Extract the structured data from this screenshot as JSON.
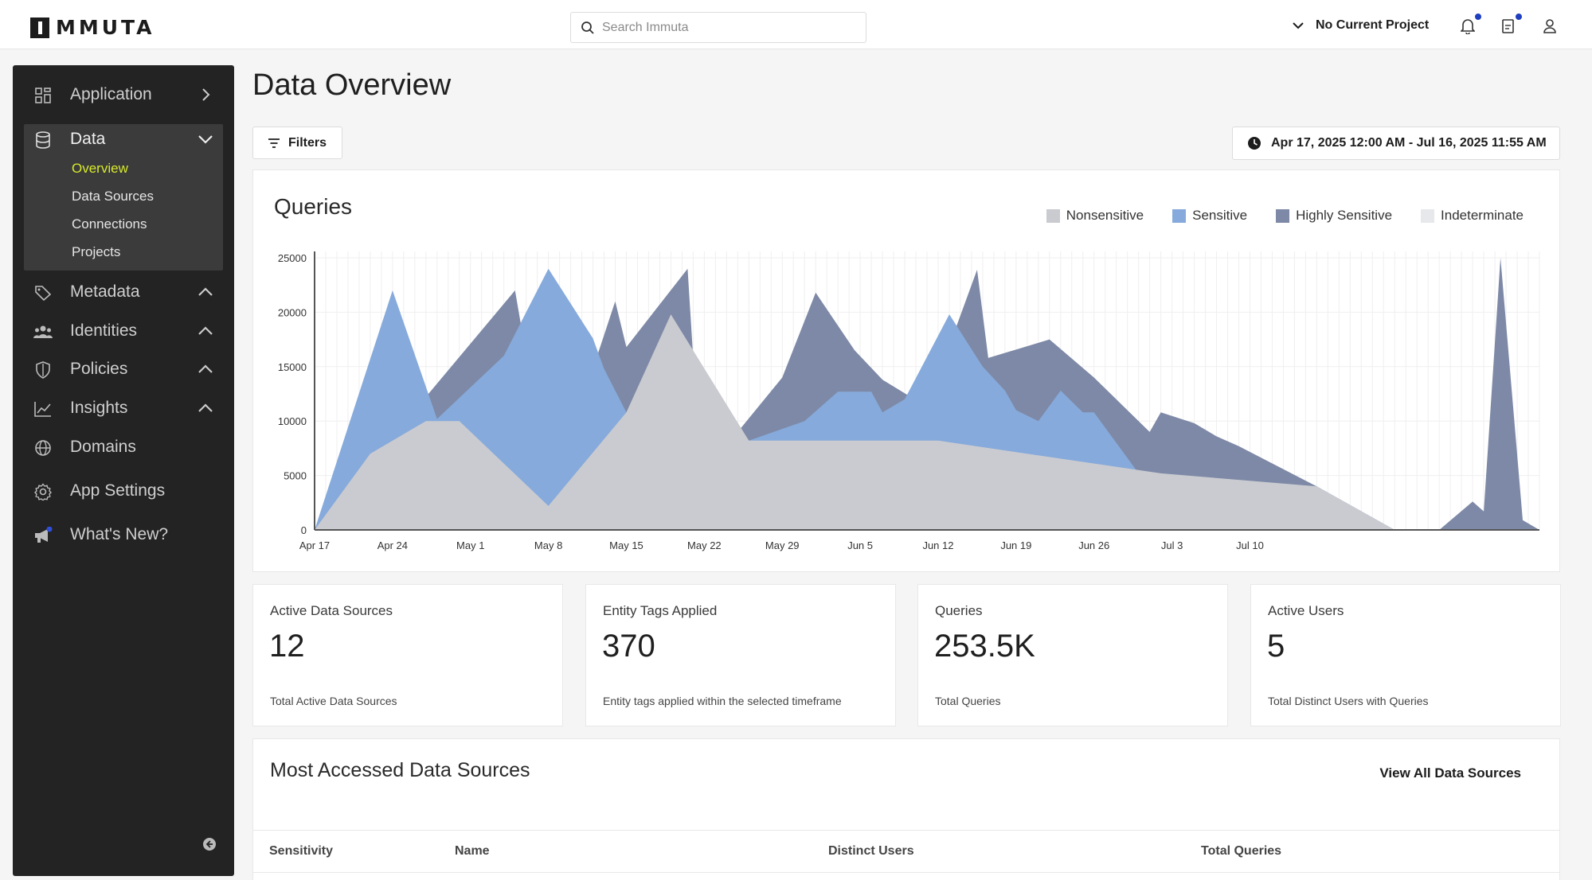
{
  "header": {
    "logo_text": "MMUTA",
    "search_placeholder": "Search Immuta",
    "project_label": "No Current Project",
    "icons": [
      "bell-icon",
      "document-icon",
      "user-icon"
    ]
  },
  "sidebar": {
    "items": [
      {
        "label": "Application",
        "icon": "grid-icon",
        "chevron": "right"
      },
      {
        "label": "Data",
        "icon": "database-icon",
        "chevron": "down"
      },
      {
        "label": "Metadata",
        "icon": "tag-icon",
        "chevron": "up"
      },
      {
        "label": "Identities",
        "icon": "people-icon",
        "chevron": "up"
      },
      {
        "label": "Policies",
        "icon": "shield-icon",
        "chevron": "up"
      },
      {
        "label": "Insights",
        "icon": "line-chart-icon",
        "chevron": "up"
      },
      {
        "label": "Domains",
        "icon": "globe-icon",
        "chevron": ""
      },
      {
        "label": "App Settings",
        "icon": "gear-icon",
        "chevron": ""
      },
      {
        "label": "What's New?",
        "icon": "megaphone-icon",
        "chevron": ""
      }
    ],
    "data_subitems": [
      "Overview",
      "Data Sources",
      "Connections",
      "Projects"
    ],
    "active_subitem": "Overview"
  },
  "page": {
    "title": "Data Overview",
    "filters_label": "Filters",
    "date_range": "Apr 17, 2025 12:00 AM - Jul 16, 2025 11:55 AM"
  },
  "colors": {
    "nonsensitive": "#cacbd0",
    "sensitive": "#86aadb",
    "highly_sensitive": "#7d89a6",
    "indeterminate": "#e7e8ec",
    "accent": "#d8ea2c"
  },
  "chart_data": {
    "type": "area",
    "title": "Queries",
    "ylim": [
      0,
      25000
    ],
    "yticks": [
      "25000",
      "20000",
      "15000",
      "10000",
      "5000",
      "0"
    ],
    "xticks": [
      "Apr 17",
      "Apr 24",
      "May 1",
      "May 8",
      "May 15",
      "May 22",
      "May 29",
      "Jun 5",
      "Jun 12",
      "Jun 19",
      "Jun 26",
      "Jul 3",
      "Jul 10"
    ],
    "x_start": "Apr 17",
    "x_end": "Jul 16",
    "legend": [
      "Nonsensitive",
      "Sensitive",
      "Highly Sensitive",
      "Indeterminate"
    ],
    "legend_position": "top-right",
    "grid": true,
    "series": [
      {
        "name": "Highly Sensitive",
        "points": [
          [
            0,
            0
          ],
          [
            18,
            22000
          ],
          [
            20,
            10200
          ],
          [
            25,
            14800
          ],
          [
            27,
            21000
          ],
          [
            28,
            16800
          ],
          [
            33.5,
            24000
          ],
          [
            34,
            15800
          ],
          [
            38,
            9000
          ],
          [
            42,
            14000
          ],
          [
            45,
            21800
          ],
          [
            48.5,
            16500
          ],
          [
            51,
            13800
          ],
          [
            55,
            11300
          ],
          [
            59.5,
            23900
          ],
          [
            60.5,
            15800
          ],
          [
            66,
            17500
          ],
          [
            70,
            14000
          ],
          [
            75,
            9000
          ],
          [
            76,
            10800
          ],
          [
            79,
            9800
          ],
          [
            81,
            8600
          ],
          [
            83,
            7700
          ],
          [
            90,
            4000
          ],
          [
            97,
            0
          ],
          [
            101,
            0
          ],
          [
            104,
            2600
          ],
          [
            105,
            1700
          ],
          [
            106.5,
            25000
          ],
          [
            108.5,
            900
          ],
          [
            110,
            0
          ]
        ]
      },
      {
        "name": "Sensitive",
        "points": [
          [
            0,
            0
          ],
          [
            7,
            22000
          ],
          [
            11,
            10200
          ],
          [
            17,
            16000
          ],
          [
            21,
            24000
          ],
          [
            25,
            17600
          ],
          [
            26,
            14800
          ],
          [
            28,
            10800
          ],
          [
            35,
            8200
          ],
          [
            39,
            8200
          ],
          [
            44,
            10000
          ],
          [
            47,
            12700
          ],
          [
            50,
            12700
          ],
          [
            51,
            10800
          ],
          [
            53,
            12000
          ],
          [
            57,
            19800
          ],
          [
            60,
            15000
          ],
          [
            62,
            12800
          ],
          [
            63,
            11000
          ],
          [
            65,
            10000
          ],
          [
            67,
            12800
          ],
          [
            69,
            10800
          ],
          [
            70,
            10800
          ],
          [
            74,
            5200
          ],
          [
            90,
            4000
          ],
          [
            97,
            0
          ]
        ]
      },
      {
        "name": "Nonsensitive",
        "points": [
          [
            0,
            0
          ],
          [
            5,
            7000
          ],
          [
            10,
            10000
          ],
          [
            13,
            10000
          ],
          [
            21,
            2200
          ],
          [
            28,
            10800
          ],
          [
            32,
            19800
          ],
          [
            39,
            8200
          ],
          [
            56,
            8200
          ],
          [
            76,
            5200
          ],
          [
            90,
            4000
          ],
          [
            97,
            0
          ]
        ]
      }
    ]
  },
  "stats": [
    {
      "label": "Active Data Sources",
      "value": "12",
      "note": "Total Active Data Sources"
    },
    {
      "label": "Entity Tags Applied",
      "value": "370",
      "note": "Entity tags applied within the selected timeframe"
    },
    {
      "label": "Queries",
      "value": "253.5K",
      "note": "Total Queries"
    },
    {
      "label": "Active Users",
      "value": "5",
      "note": "Total Distinct Users with Queries"
    }
  ],
  "table": {
    "title": "Most Accessed Data Sources",
    "view_all_label": "View All Data Sources",
    "columns": [
      "Sensitivity",
      "Name",
      "Distinct Users",
      "Total Queries"
    ]
  }
}
